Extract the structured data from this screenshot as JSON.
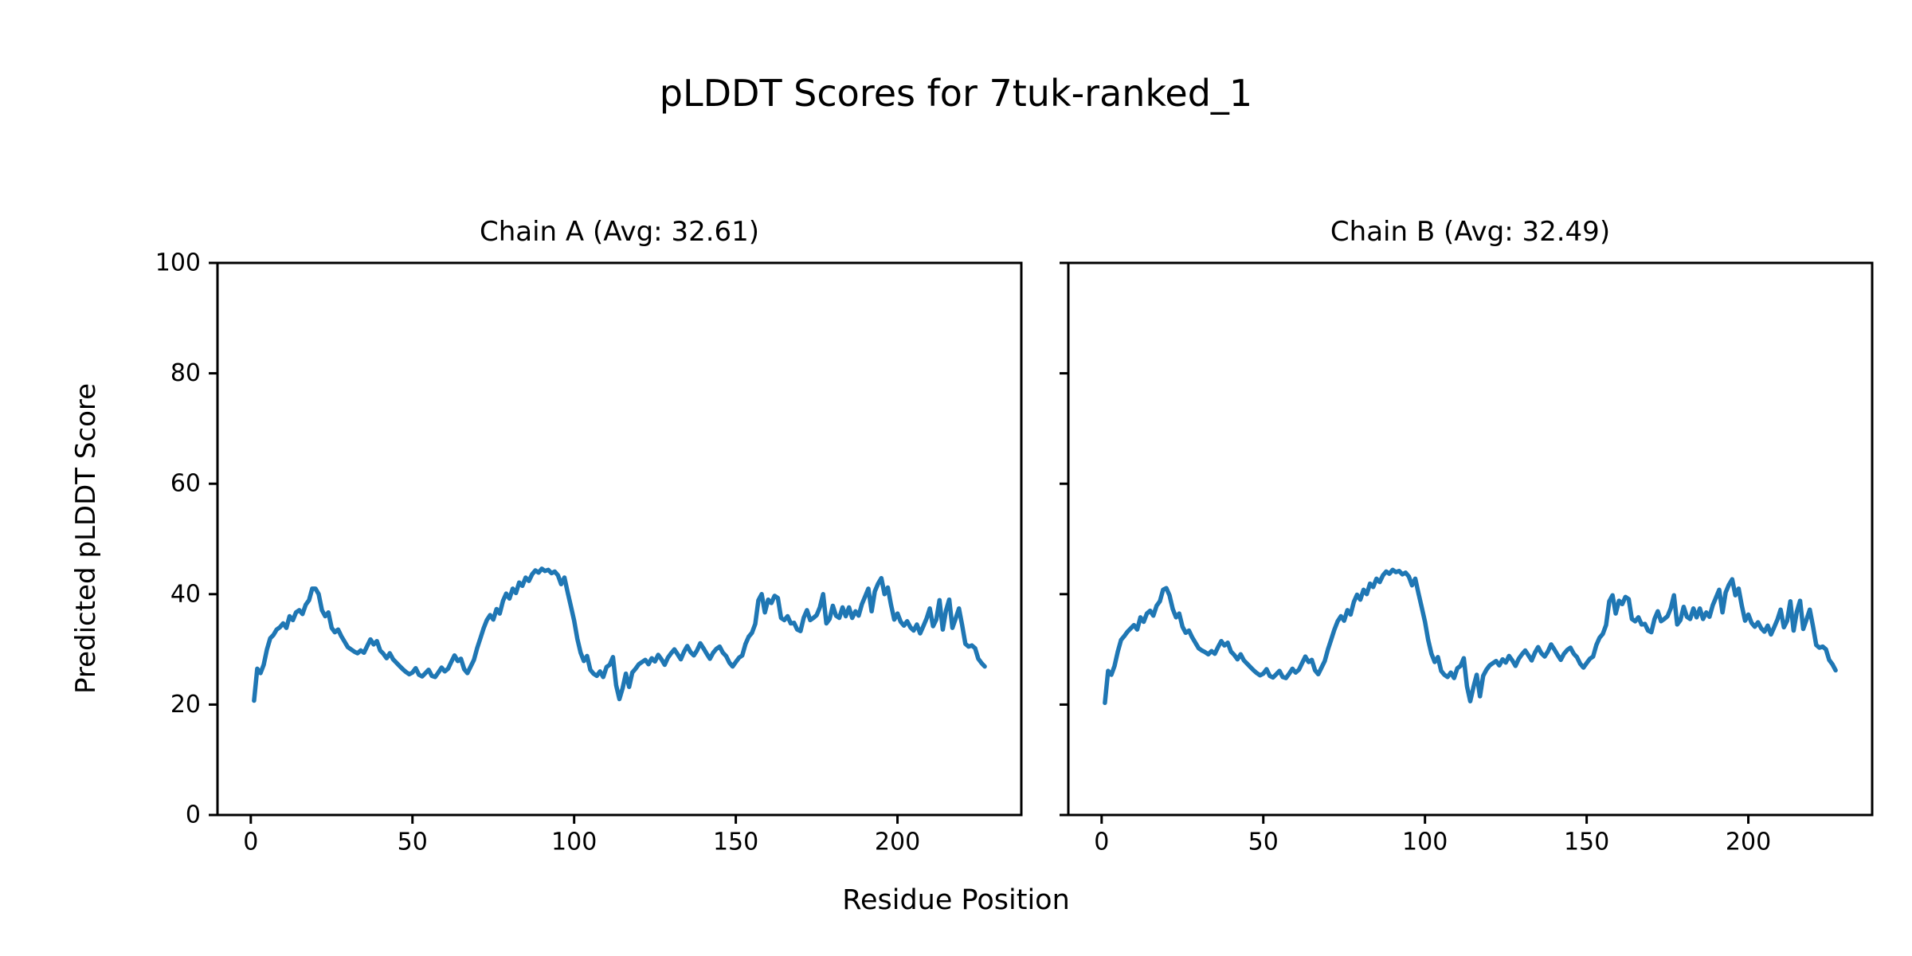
{
  "figure": {
    "background": "#ffffff"
  },
  "chart_data": {
    "type": "line",
    "title": "pLDDT Scores for 7tuk-ranked_1",
    "xlabel": "Residue Position",
    "ylabel": "Predicted pLDDT Score",
    "xlim": [
      -10.3,
      238.3
    ],
    "ylim": [
      0,
      100
    ],
    "xticks": [
      0,
      50,
      100,
      150,
      200
    ],
    "yticks": [
      0,
      20,
      40,
      60,
      80,
      100
    ],
    "grid": false,
    "legend": null,
    "line_color": "#1f77b4",
    "spine_color": "#000000",
    "text_color": "#000000",
    "subplots": [
      {
        "title": "Chain A (Avg: 32.61)",
        "chain": "A",
        "avg": 32.61,
        "x_start": 1,
        "n_residues": 227,
        "show_ytick_labels": true,
        "values": [
          20.7,
          26.5,
          25.7,
          27.2,
          30.0,
          32.0,
          32.6,
          33.6,
          34.0,
          34.7,
          33.9,
          36.0,
          35.3,
          36.7,
          37.1,
          36.4,
          38.1,
          38.9,
          41.0,
          41.0,
          40.0,
          37.1,
          36.0,
          36.7,
          33.9,
          33.1,
          33.6,
          32.4,
          31.4,
          30.4,
          30.0,
          29.6,
          29.3,
          29.8,
          29.4,
          30.6,
          31.8,
          30.9,
          31.5,
          29.8,
          29.2,
          28.4,
          29.3,
          28.2,
          27.6,
          27.0,
          26.4,
          25.9,
          25.5,
          25.8,
          26.6,
          25.4,
          25.1,
          25.7,
          26.3,
          25.2,
          25.0,
          25.8,
          26.7,
          26.0,
          26.5,
          27.7,
          28.9,
          27.9,
          28.3,
          26.4,
          25.7,
          26.9,
          28.1,
          30.2,
          32.0,
          33.8,
          35.3,
          36.2,
          35.4,
          37.3,
          36.5,
          38.8,
          40.1,
          39.2,
          41.0,
          40.2,
          42.1,
          41.5,
          43.0,
          42.4,
          43.6,
          44.3,
          43.9,
          44.6,
          44.2,
          44.4,
          43.8,
          44.1,
          43.4,
          41.8,
          43.0,
          40.3,
          37.8,
          35.2,
          31.9,
          29.4,
          27.9,
          28.8,
          26.3,
          25.6,
          25.2,
          26.0,
          25.0,
          26.8,
          27.2,
          28.6,
          23.5,
          21.0,
          23.0,
          25.6,
          23.2,
          25.8,
          26.5,
          27.3,
          27.7,
          28.1,
          27.3,
          28.4,
          27.8,
          29.0,
          28.2,
          27.2,
          28.5,
          29.3,
          30.0,
          29.1,
          28.2,
          29.6,
          30.6,
          29.5,
          28.9,
          29.8,
          31.1,
          30.2,
          29.2,
          28.3,
          29.4,
          30.1,
          30.5,
          29.4,
          28.8,
          27.6,
          26.9,
          27.7,
          28.5,
          28.9,
          31.0,
          32.3,
          33.0,
          34.6,
          38.9,
          40.0,
          36.7,
          39.0,
          38.4,
          39.7,
          39.3,
          35.7,
          35.3,
          36.0,
          34.7,
          34.8,
          33.6,
          33.3,
          35.7,
          37.1,
          35.3,
          35.7,
          36.2,
          37.6,
          40.0,
          34.7,
          35.5,
          37.9,
          36.1,
          35.7,
          37.6,
          36.0,
          37.6,
          35.7,
          36.9,
          36.1,
          38.2,
          39.6,
          41.0,
          36.9,
          40.5,
          41.9,
          42.9,
          40.0,
          41.2,
          38.1,
          35.4,
          36.5,
          35.0,
          34.3,
          35.1,
          34.0,
          33.4,
          34.5,
          32.9,
          34.2,
          35.6,
          37.4,
          34.2,
          35.4,
          38.9,
          33.6,
          37.0,
          39.0,
          33.9,
          35.6,
          37.4,
          34.4,
          31.0,
          30.5,
          30.7,
          30.2,
          28.3,
          27.5,
          26.9
        ]
      },
      {
        "title": "Chain B (Avg: 32.49)",
        "chain": "B",
        "avg": 32.49,
        "x_start": 1,
        "n_residues": 227,
        "show_ytick_labels": false,
        "values": [
          20.3,
          26.1,
          25.4,
          27.0,
          29.6,
          31.7,
          32.4,
          33.2,
          33.8,
          34.4,
          33.6,
          35.8,
          35.0,
          36.5,
          37.0,
          36.1,
          37.9,
          38.7,
          40.8,
          41.1,
          39.8,
          37.3,
          35.8,
          36.5,
          34.1,
          33.0,
          33.4,
          32.2,
          31.2,
          30.2,
          29.8,
          29.5,
          29.1,
          29.7,
          29.2,
          30.4,
          31.5,
          30.7,
          31.2,
          29.6,
          29.0,
          28.2,
          29.1,
          28.0,
          27.4,
          26.8,
          26.2,
          25.7,
          25.3,
          25.6,
          26.4,
          25.2,
          24.9,
          25.5,
          26.1,
          25.0,
          24.8,
          25.6,
          26.5,
          25.8,
          26.3,
          27.5,
          28.7,
          27.7,
          28.1,
          26.2,
          25.5,
          26.7,
          27.9,
          30.0,
          31.8,
          33.6,
          35.1,
          36.0,
          35.2,
          37.1,
          36.3,
          38.6,
          39.9,
          39.0,
          40.8,
          40.0,
          41.9,
          41.3,
          42.8,
          42.2,
          43.4,
          44.1,
          43.7,
          44.4,
          44.0,
          44.2,
          43.6,
          43.9,
          43.2,
          41.6,
          42.8,
          40.1,
          37.6,
          35.0,
          31.7,
          29.2,
          27.7,
          28.6,
          26.1,
          25.4,
          25.0,
          25.8,
          24.8,
          26.6,
          27.0,
          28.4,
          23.3,
          20.6,
          23.2,
          25.4,
          21.5,
          25.2,
          26.3,
          27.1,
          27.5,
          27.9,
          27.1,
          28.2,
          27.6,
          28.8,
          28.0,
          27.0,
          28.3,
          29.1,
          29.8,
          28.9,
          28.0,
          29.4,
          30.4,
          29.3,
          28.7,
          29.6,
          30.9,
          30.0,
          29.0,
          28.1,
          29.2,
          29.9,
          30.3,
          29.2,
          28.6,
          27.4,
          26.7,
          27.5,
          28.3,
          28.7,
          30.8,
          32.1,
          32.8,
          34.4,
          38.7,
          39.8,
          36.5,
          38.8,
          38.2,
          39.5,
          39.1,
          35.5,
          35.1,
          35.8,
          34.5,
          34.6,
          33.4,
          33.1,
          35.5,
          36.9,
          35.1,
          35.5,
          36.0,
          37.4,
          39.8,
          34.5,
          35.3,
          37.7,
          35.9,
          35.5,
          37.4,
          35.8,
          37.4,
          35.5,
          36.7,
          35.9,
          38.0,
          39.4,
          40.8,
          36.7,
          40.3,
          41.7,
          42.7,
          39.8,
          41.0,
          37.9,
          35.2,
          36.3,
          34.8,
          34.1,
          34.9,
          33.8,
          33.2,
          34.3,
          32.7,
          34.0,
          35.4,
          37.2,
          34.0,
          35.2,
          38.7,
          33.4,
          36.8,
          38.8,
          33.7,
          35.4,
          37.2,
          34.2,
          30.8,
          30.3,
          30.5,
          30.0,
          28.1,
          27.3,
          26.2
        ]
      }
    ]
  }
}
